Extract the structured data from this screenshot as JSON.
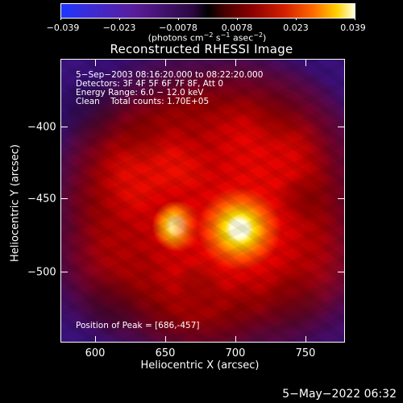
{
  "colorbar": {
    "min_label": "−0.039",
    "tick_labels": [
      "−0.023",
      "−0.0078",
      "0.0078",
      "0.023",
      "0.039"
    ],
    "unit_prefix": "(photons cm",
    "unit_cm_exp": "−2",
    "unit_mid": " s",
    "unit_s_exp": "−1",
    "unit_mid2": " asec",
    "unit_asec_exp": "−2",
    "unit_suffix": ")"
  },
  "title": "Reconstructed RHESSI Image",
  "annotations": {
    "time_range": "5−Sep−2003 08:16:20.000 to 08:22:20.000",
    "detectors": "Detectors: 3F 4F 5F 6F 7F 8F, Att 0",
    "energy_range": "Energy Range: 6.0 − 12.0 keV",
    "clean_counts": "Clean    Total counts: 1.70E+05",
    "peak_position": "Position of Peak = [686,-457]"
  },
  "axes": {
    "x": {
      "label": "Heliocentric X (arcsec)",
      "tick_labels": [
        "600",
        "650",
        "700",
        "750"
      ],
      "range": [
        580,
        770
      ]
    },
    "y": {
      "label": "Heliocentric Y (arcsec)",
      "tick_labels": [
        "−400",
        "−450",
        "−500"
      ],
      "range": [
        -550,
        -363
      ]
    }
  },
  "timestamp": "5−May−2022 06:32",
  "colors": {
    "background": "#000000",
    "foreground": "#ffffff",
    "colormap_negative": "#1c37ff",
    "colormap_zero": "#000000",
    "colormap_positive": "#ffffdf",
    "image_background": "#3b176d"
  }
}
